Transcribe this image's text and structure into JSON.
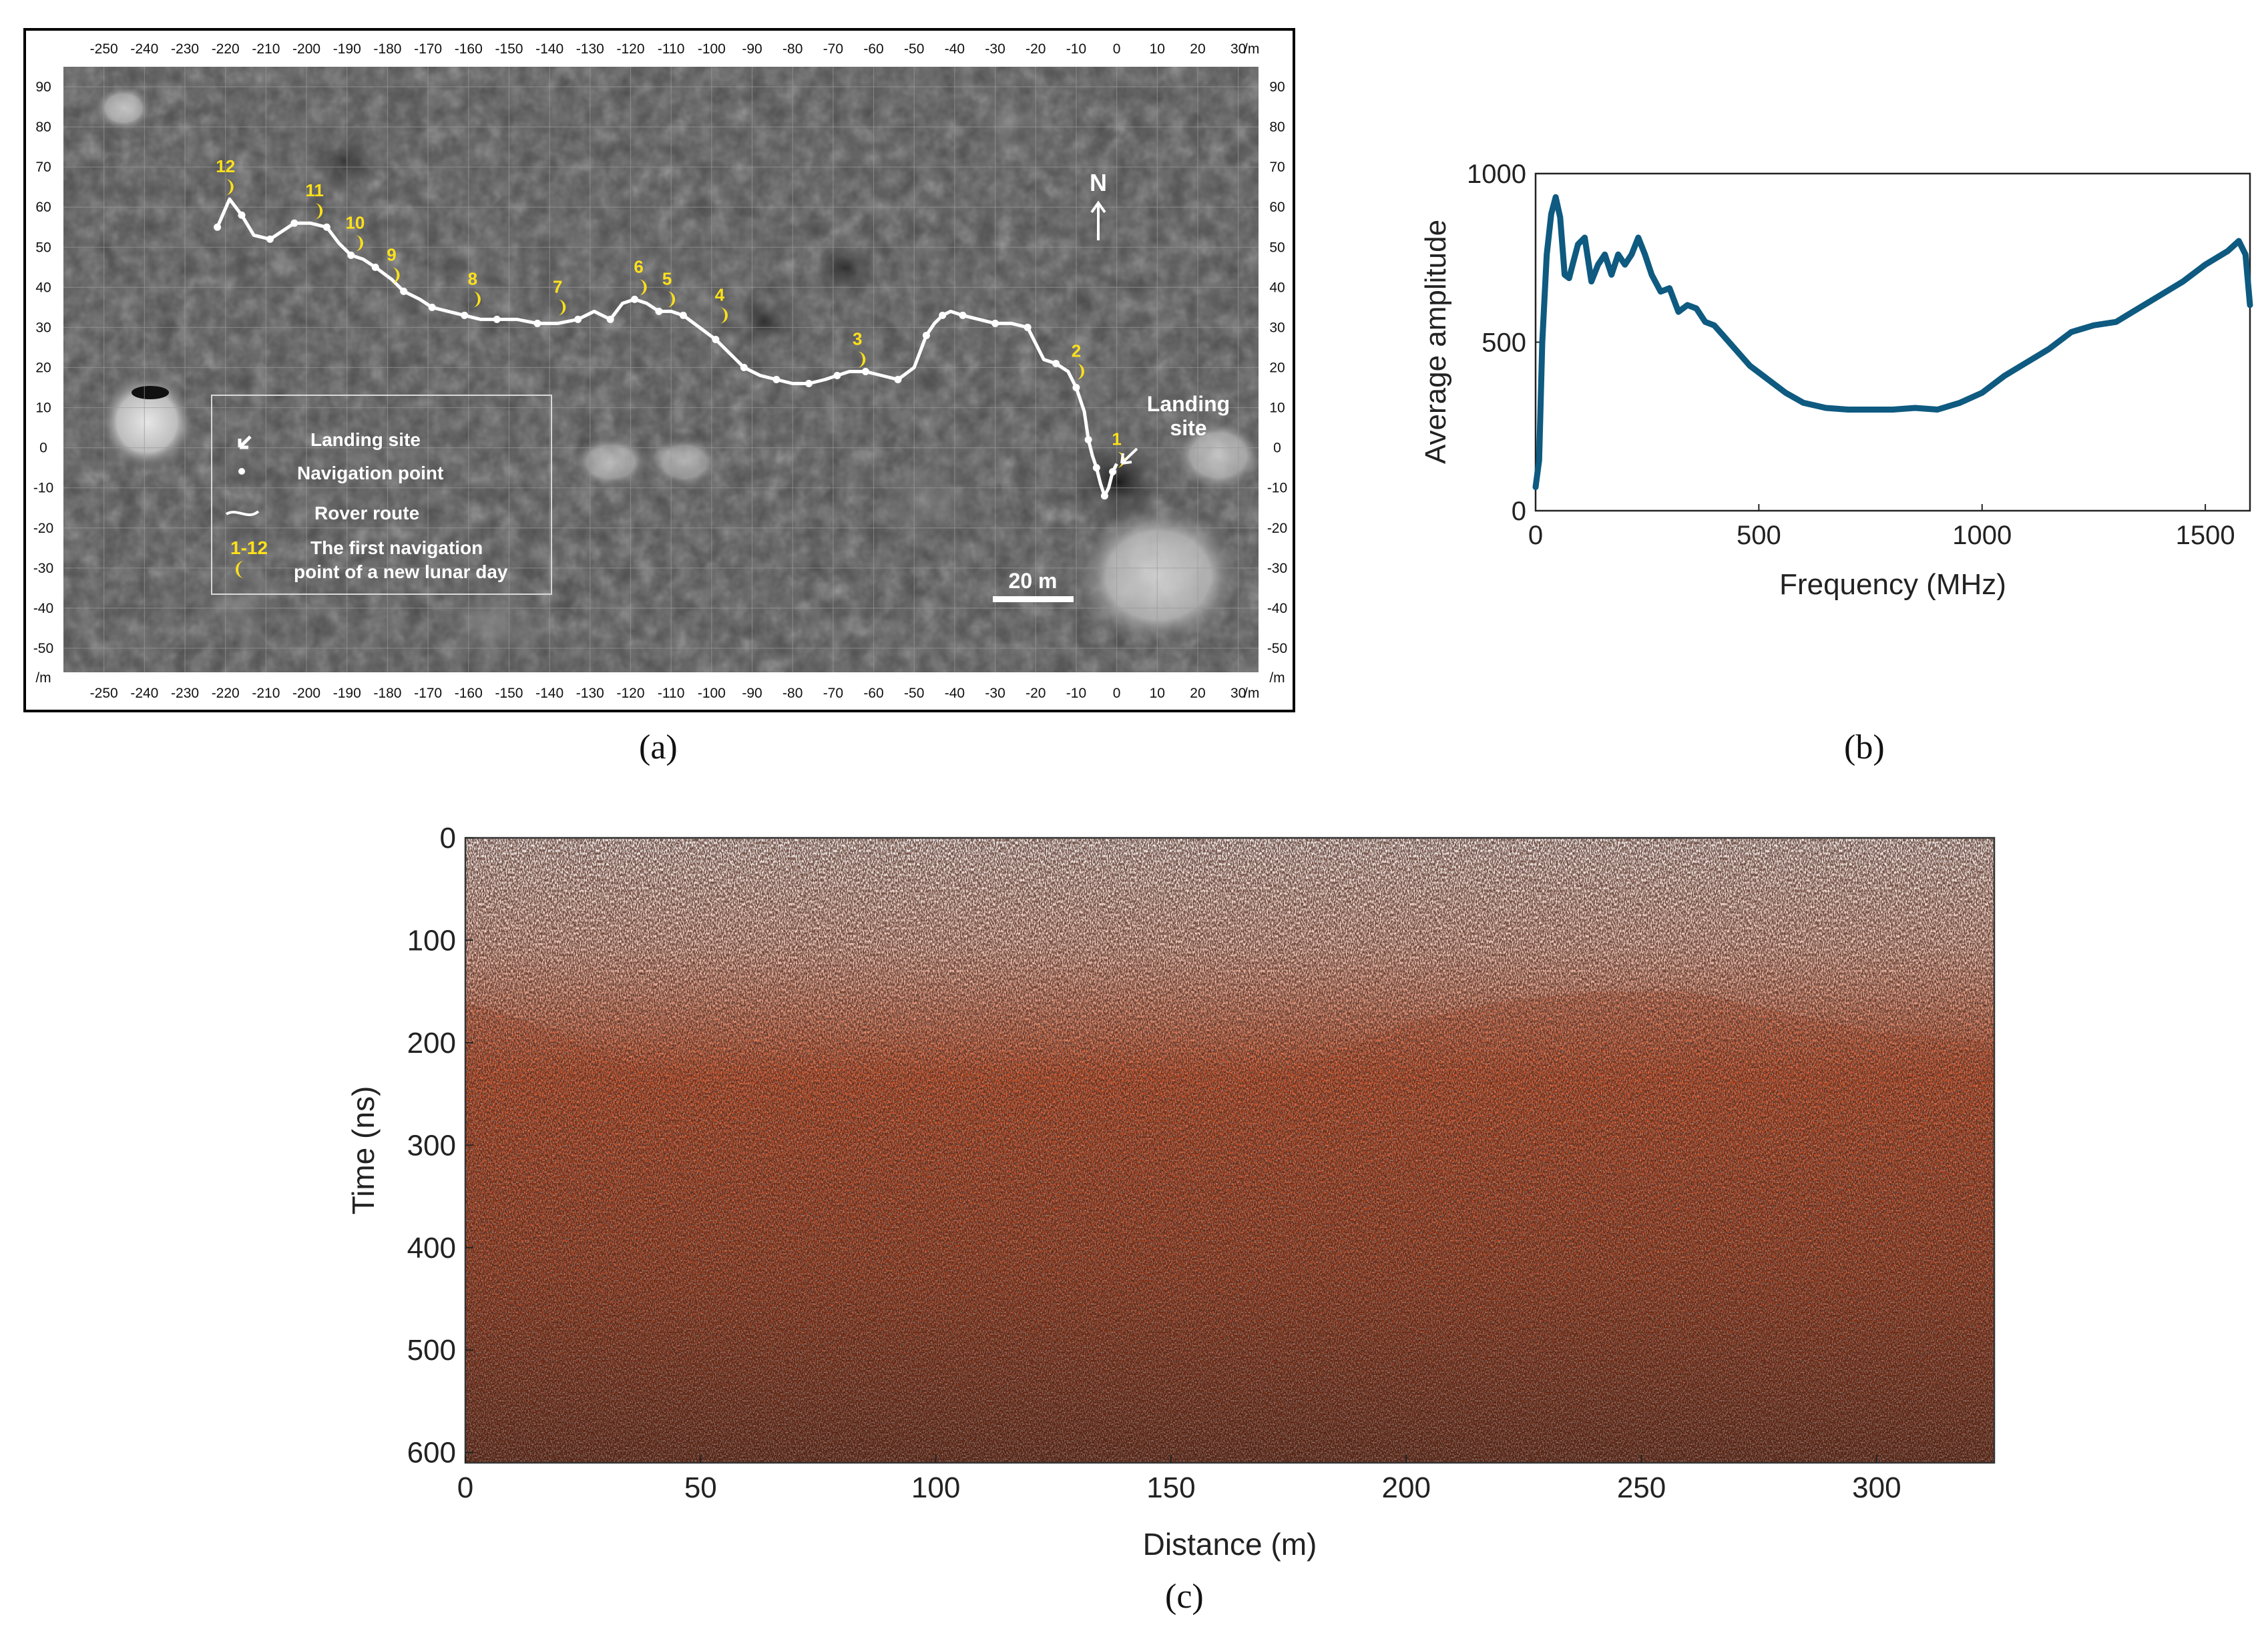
{
  "panels": {
    "a": {
      "label": "(a)"
    },
    "b": {
      "label": "(b)"
    },
    "c": {
      "label": "(c)"
    }
  },
  "chart_data": [
    {
      "panel": "a",
      "type": "scatter",
      "description_type": "map",
      "x_ticks": [
        -250,
        -240,
        -230,
        -220,
        -210,
        -200,
        -190,
        -180,
        -170,
        -160,
        -150,
        -140,
        -130,
        -120,
        -110,
        -100,
        -90,
        -80,
        -70,
        -60,
        -50,
        -40,
        -30,
        -20,
        -10,
        0,
        10,
        20,
        30
      ],
      "y_ticks": [
        90,
        80,
        70,
        60,
        50,
        40,
        30,
        20,
        10,
        0,
        -10,
        -20,
        -30,
        -40,
        -50
      ],
      "x_unit": "/m",
      "y_unit": "/m",
      "xlim": [
        -260,
        35
      ],
      "ylim": [
        -56,
        95
      ],
      "series": [
        {
          "name": "Rover route",
          "x": [
            -222,
            -219,
            -216,
            -213,
            -209,
            -206,
            -203,
            -199,
            -195,
            -192,
            -189,
            -186,
            -183,
            -179,
            -176,
            -172,
            -169,
            -165,
            -161,
            -157,
            -153,
            -148,
            -143,
            -138,
            -133,
            -129,
            -125,
            -122,
            -119,
            -116,
            -113,
            -110,
            -107,
            -103,
            -99,
            -96,
            -92,
            -88,
            -84,
            -80,
            -76,
            -72,
            -69,
            -66,
            -62,
            -58,
            -54,
            -50,
            -47,
            -45,
            -43,
            -41,
            -38,
            -34,
            -30,
            -26,
            -22,
            -18,
            -15,
            -12,
            -10,
            -8,
            -7,
            -6,
            -5,
            -4,
            -3,
            -2,
            -1,
            0
          ],
          "y": [
            55,
            62,
            58,
            53,
            52,
            54,
            56,
            56,
            55,
            51,
            48,
            47,
            45,
            42,
            39,
            37,
            35,
            34,
            33,
            32,
            32,
            32,
            31,
            31,
            32,
            34,
            32,
            36,
            37,
            36,
            34,
            34,
            33,
            30,
            27,
            24,
            20,
            18,
            17,
            16,
            16,
            17,
            18,
            19,
            19,
            18,
            17,
            20,
            28,
            31,
            33,
            34,
            33,
            32,
            31,
            31,
            30,
            22,
            21,
            19,
            15,
            9,
            2,
            -2,
            -5,
            -9,
            -12,
            -10,
            -6,
            -4
          ]
        }
      ],
      "lunar_day_markers": [
        {
          "label": "1",
          "x": 0,
          "y": -3
        },
        {
          "label": "2",
          "x": -10,
          "y": 19
        },
        {
          "label": "3",
          "x": -64,
          "y": 22
        },
        {
          "label": "4",
          "x": -98,
          "y": 33
        },
        {
          "label": "5",
          "x": -111,
          "y": 37
        },
        {
          "label": "6",
          "x": -118,
          "y": 40
        },
        {
          "label": "7",
          "x": -138,
          "y": 35
        },
        {
          "label": "8",
          "x": -159,
          "y": 37
        },
        {
          "label": "9",
          "x": -179,
          "y": 43
        },
        {
          "label": "10",
          "x": -188,
          "y": 51
        },
        {
          "label": "11",
          "x": -198,
          "y": 59
        },
        {
          "label": "12",
          "x": -220,
          "y": 65
        }
      ],
      "legend": [
        {
          "symbol": "arrow",
          "text": "Landing site"
        },
        {
          "symbol": "dot",
          "text": "Navigation point"
        },
        {
          "symbol": "line",
          "text": "Rover route"
        },
        {
          "symbol": "moon",
          "marker_text": "1-12",
          "text_line1": "The first navigation",
          "text_line2": "point of a new lunar day"
        }
      ],
      "annotations": {
        "north": "N",
        "landing_line1": "Landing",
        "landing_line2": "site",
        "scale_bar": "20 m"
      }
    },
    {
      "panel": "b",
      "type": "line",
      "title": "",
      "xlabel": "Frequency (MHz)",
      "ylabel": "Average amplitude",
      "xlim": [
        0,
        1600
      ],
      "ylim": [
        0,
        1000
      ],
      "x_ticks": [
        0,
        500,
        1000,
        1500
      ],
      "y_ticks": [
        0,
        500,
        1000
      ],
      "color": "#0e5a80",
      "series": [
        {
          "name": "Average amplitude",
          "x": [
            0,
            8,
            15,
            25,
            35,
            45,
            55,
            65,
            75,
            85,
            95,
            110,
            125,
            140,
            155,
            170,
            185,
            200,
            215,
            230,
            245,
            260,
            280,
            300,
            320,
            340,
            360,
            380,
            400,
            420,
            440,
            460,
            480,
            500,
            530,
            560,
            600,
            650,
            700,
            750,
            800,
            850,
            900,
            950,
            1000,
            1050,
            1100,
            1150,
            1200,
            1250,
            1300,
            1350,
            1400,
            1450,
            1500,
            1550,
            1575,
            1590,
            1600
          ],
          "y": [
            70,
            150,
            500,
            760,
            880,
            930,
            870,
            700,
            690,
            740,
            790,
            810,
            680,
            730,
            760,
            700,
            760,
            730,
            760,
            810,
            760,
            700,
            650,
            660,
            590,
            610,
            600,
            560,
            550,
            520,
            490,
            460,
            430,
            410,
            380,
            350,
            320,
            305,
            300,
            300,
            300,
            305,
            300,
            320,
            350,
            400,
            440,
            480,
            530,
            550,
            560,
            600,
            640,
            680,
            730,
            770,
            800,
            760,
            610
          ]
        }
      ]
    },
    {
      "panel": "c",
      "type": "heatmap",
      "title": "",
      "xlabel": "Distance (m)",
      "ylabel": "Time (ns)",
      "xlim": [
        0,
        325
      ],
      "ylim": [
        610,
        0
      ],
      "x_ticks": [
        0,
        50,
        100,
        150,
        200,
        250,
        300
      ],
      "y_ticks": [
        0,
        100,
        200,
        300,
        400,
        500,
        600
      ],
      "colormap": [
        "#ffffff",
        "#f7c9b8",
        "#d2491b",
        "#8a2a0c",
        "#150503"
      ],
      "transition_boundary_ns": {
        "x": [
          0,
          20,
          40,
          60,
          80,
          100,
          120,
          140,
          160,
          180,
          200,
          220,
          240,
          260,
          280,
          300,
          325
        ],
        "y": [
          160,
          190,
          230,
          270,
          290,
          250,
          240,
          260,
          250,
          220,
          180,
          160,
          150,
          150,
          170,
          190,
          200
        ]
      }
    }
  ]
}
